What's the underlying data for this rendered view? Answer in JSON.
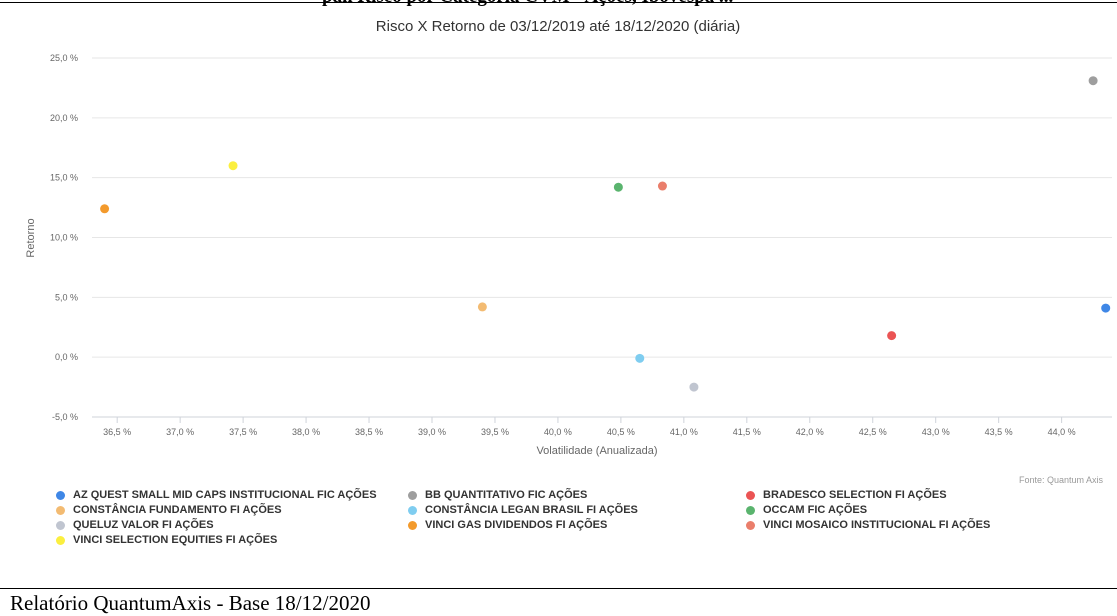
{
  "header": {
    "fragment": "palí Risco por Categoria CVM - Ações, Ibovespa ..."
  },
  "footer": {
    "text": "Relatório QuantumAxis - Base 18/12/2020"
  },
  "source": {
    "text": "Fonte: Quantum Axis"
  },
  "chart_data": {
    "type": "scatter",
    "title": "Risco X Retorno de 03/12/2019 até 18/12/2020 (diária)",
    "xlabel": "Volatilidade (Anualizada)",
    "ylabel": "Retorno",
    "xlim": [
      36.3,
      44.4
    ],
    "ylim": [
      -5.0,
      25.0
    ],
    "x_ticks": [
      36.5,
      37.0,
      37.5,
      38.0,
      38.5,
      39.0,
      39.5,
      40.0,
      40.5,
      41.0,
      41.5,
      42.0,
      42.5,
      43.0,
      43.5,
      44.0
    ],
    "y_ticks": [
      -5.0,
      0.0,
      5.0,
      10.0,
      15.0,
      20.0,
      25.0
    ],
    "x_tick_labels": [
      "36,5 %",
      "37,0 %",
      "37,5 %",
      "38,0 %",
      "38,5 %",
      "39,0 %",
      "39,5 %",
      "40,0 %",
      "40,5 %",
      "41,0 %",
      "41,5 %",
      "42,0 %",
      "42,5 %",
      "43,0 %",
      "43,5 %",
      "44,0 %"
    ],
    "y_tick_labels": [
      "-5,0 %",
      "0,0 %",
      "5,0 %",
      "10,0 %",
      "15,0 %",
      "20,0 %",
      "25,0 %"
    ],
    "grid": true,
    "legend_position": "bottom",
    "series": [
      {
        "name": "AZ QUEST SMALL MID CAPS INSTITUCIONAL FIC AÇÕES",
        "color": "#3f87e6",
        "x": 44.35,
        "y": 4.1
      },
      {
        "name": "BB QUANTITATIVO FIC AÇÕES",
        "color": "#9e9e9e",
        "x": 44.25,
        "y": 23.1
      },
      {
        "name": "BRADESCO SELECTION FI AÇÕES",
        "color": "#eb5454",
        "x": 42.65,
        "y": 1.8
      },
      {
        "name": "CONSTÂNCIA FUNDAMENTO FI AÇÕES",
        "color": "#f3bb72",
        "x": 39.4,
        "y": 4.2
      },
      {
        "name": "CONSTÂNCIA LEGAN BRASIL FI AÇÕES",
        "color": "#7fcdf0",
        "x": 40.65,
        "y": -0.1
      },
      {
        "name": "OCCAM FIC AÇÕES",
        "color": "#5ab46e",
        "x": 40.48,
        "y": 14.2
      },
      {
        "name": "QUELUZ VALOR FI AÇÕES",
        "color": "#c0c5d0",
        "x": 41.08,
        "y": -2.5
      },
      {
        "name": "VINCI GAS DIVIDENDOS FI AÇÕES",
        "color": "#f39a2c",
        "x": 36.4,
        "y": 12.4
      },
      {
        "name": "VINCI MOSAICO INSTITUCIONAL FI AÇÕES",
        "color": "#ea7e6b",
        "x": 40.83,
        "y": 14.3
      },
      {
        "name": "VINCI SELECTION EQUITIES FI AÇÕES",
        "color": "#fbef3f",
        "x": 37.42,
        "y": 16.0
      }
    ]
  }
}
